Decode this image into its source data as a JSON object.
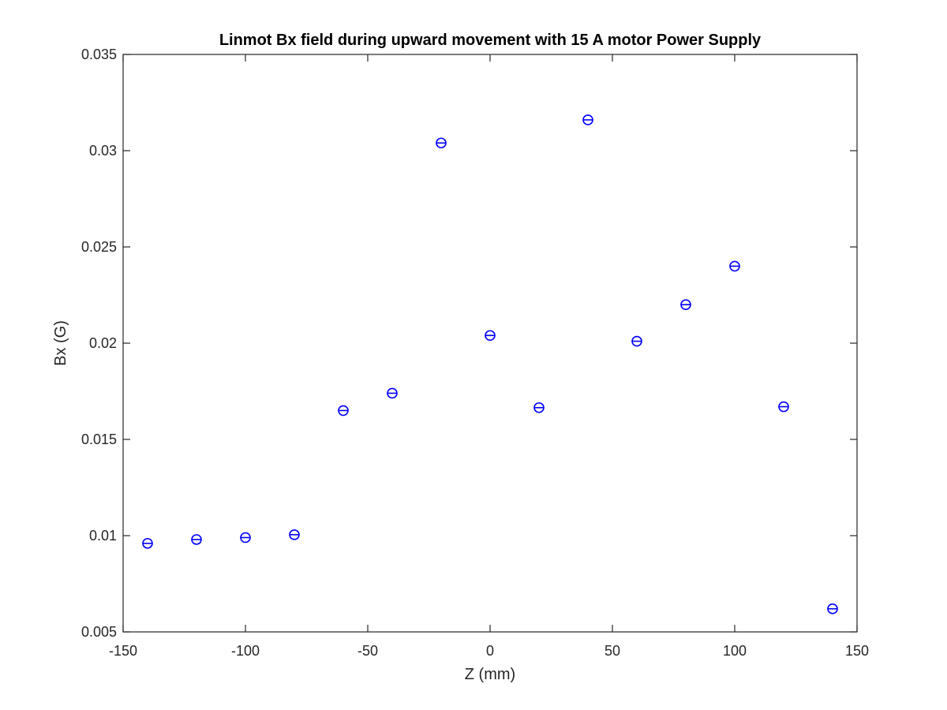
{
  "chart_data": {
    "type": "scatter",
    "title": "Linmot Bx field during upward movement with 15 A motor Power Supply",
    "xlabel": "Z (mm)",
    "ylabel": "Bx (G)",
    "xlim": [
      -150,
      150
    ],
    "ylim": [
      0.005,
      0.035
    ],
    "xticks": [
      -150,
      -100,
      -50,
      0,
      50,
      100,
      150
    ],
    "xtick_labels": [
      "-150",
      "-100",
      "-50",
      "0",
      "50",
      "100",
      "150"
    ],
    "yticks": [
      0.005,
      0.01,
      0.015,
      0.02,
      0.025,
      0.03,
      0.035
    ],
    "ytick_labels": [
      "0.005",
      "0.01",
      "0.015",
      "0.02",
      "0.025",
      "0.03",
      "0.035"
    ],
    "grid": false,
    "box": true,
    "marker": "circle-with-horizontal-line",
    "marker_color": "#0000ff",
    "series": [
      {
        "x": [
          -140,
          -120,
          -100,
          -80,
          -60,
          -40,
          -20,
          0,
          20,
          40,
          60,
          80,
          100,
          120,
          140
        ],
        "y": [
          0.0096,
          0.0098,
          0.0099,
          0.01005,
          0.0165,
          0.0174,
          0.0304,
          0.0204,
          0.01665,
          0.0316,
          0.0201,
          0.022,
          0.024,
          0.0167,
          0.0062
        ]
      }
    ]
  }
}
